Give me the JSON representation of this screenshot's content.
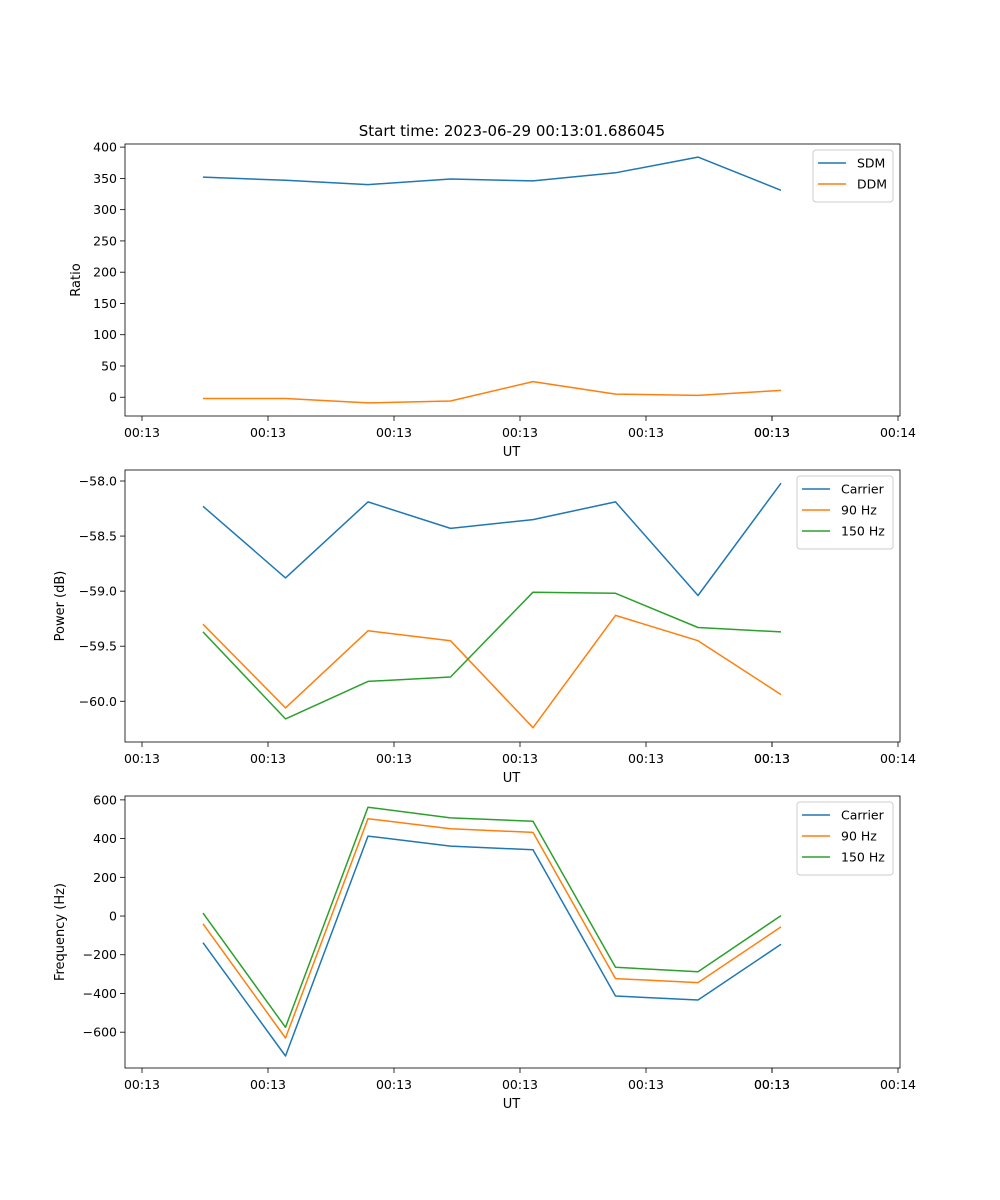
{
  "figure": {
    "suptitle": "Start time: 2023-06-29 00:13:01.686045"
  },
  "chart_data": [
    {
      "type": "line",
      "title": "",
      "xlabel": "UT",
      "ylabel": "Ratio",
      "x_tick_labels": [
        "00:13",
        "00:13",
        "00:13",
        "00:13",
        "00:13",
        "00:13",
        "00:13",
        "00:14"
      ],
      "y_ticks": [
        0,
        50,
        100,
        150,
        200,
        250,
        300,
        350,
        400
      ],
      "y_tick_labels": [
        "0",
        "50",
        "100",
        "150",
        "200",
        "250",
        "300",
        "350",
        "400"
      ],
      "ylim": [
        -30,
        405
      ],
      "grid": false,
      "legend": "top-right",
      "series": [
        {
          "name": "SDM",
          "color": "#1f77b4",
          "values": [
            352,
            347,
            340,
            349,
            346,
            359,
            384,
            331
          ]
        },
        {
          "name": "DDM",
          "color": "#ff7f0e",
          "values": [
            -2,
            -2,
            -9,
            -6,
            25,
            5,
            3,
            11
          ]
        }
      ]
    },
    {
      "type": "line",
      "title": "",
      "xlabel": "UT",
      "ylabel": "Power (dB)",
      "x_tick_labels": [
        "00:13",
        "00:13",
        "00:13",
        "00:13",
        "00:13",
        "00:13",
        "00:13",
        "00:14"
      ],
      "y_ticks": [
        -60.0,
        -59.5,
        -59.0,
        -58.5,
        -58.0
      ],
      "y_tick_labels": [
        "−60.0",
        "−59.5",
        "−59.0",
        "−58.5",
        "−58.0"
      ],
      "ylim": [
        -60.37,
        -57.9
      ],
      "grid": false,
      "legend": "top-right",
      "series": [
        {
          "name": "Carrier",
          "color": "#1f77b4",
          "values": [
            -58.23,
            -58.88,
            -58.19,
            -58.43,
            -58.35,
            -58.19,
            -59.04,
            -58.02
          ]
        },
        {
          "name": "90 Hz",
          "color": "#ff7f0e",
          "values": [
            -59.3,
            -60.06,
            -59.36,
            -59.45,
            -60.24,
            -59.22,
            -59.45,
            -59.94
          ]
        },
        {
          "name": "150 Hz",
          "color": "#2ca02c",
          "values": [
            -59.37,
            -60.16,
            -59.82,
            -59.78,
            -59.01,
            -59.02,
            -59.33,
            -59.37
          ]
        }
      ]
    },
    {
      "type": "line",
      "title": "",
      "xlabel": "UT",
      "ylabel": "Frequency (Hz)",
      "x_tick_labels": [
        "00:13",
        "00:13",
        "00:13",
        "00:13",
        "00:13",
        "00:13",
        "00:13",
        "00:14"
      ],
      "y_ticks": [
        -600,
        -400,
        -200,
        0,
        200,
        400,
        600
      ],
      "y_tick_labels": [
        "−600",
        "−400",
        "−200",
        "0",
        "200",
        "400",
        "600"
      ],
      "ylim": [
        -785,
        620
      ],
      "grid": false,
      "legend": "top-right",
      "series": [
        {
          "name": "Carrier",
          "color": "#1f77b4",
          "values": [
            -138,
            -723,
            413,
            361,
            342,
            -413,
            -434,
            -146
          ]
        },
        {
          "name": "90 Hz",
          "color": "#ff7f0e",
          "values": [
            -40,
            -630,
            503,
            451,
            432,
            -323,
            -344,
            -56
          ]
        },
        {
          "name": "150 Hz",
          "color": "#2ca02c",
          "values": [
            15,
            -575,
            562,
            507,
            490,
            -265,
            -288,
            2
          ]
        }
      ]
    }
  ]
}
